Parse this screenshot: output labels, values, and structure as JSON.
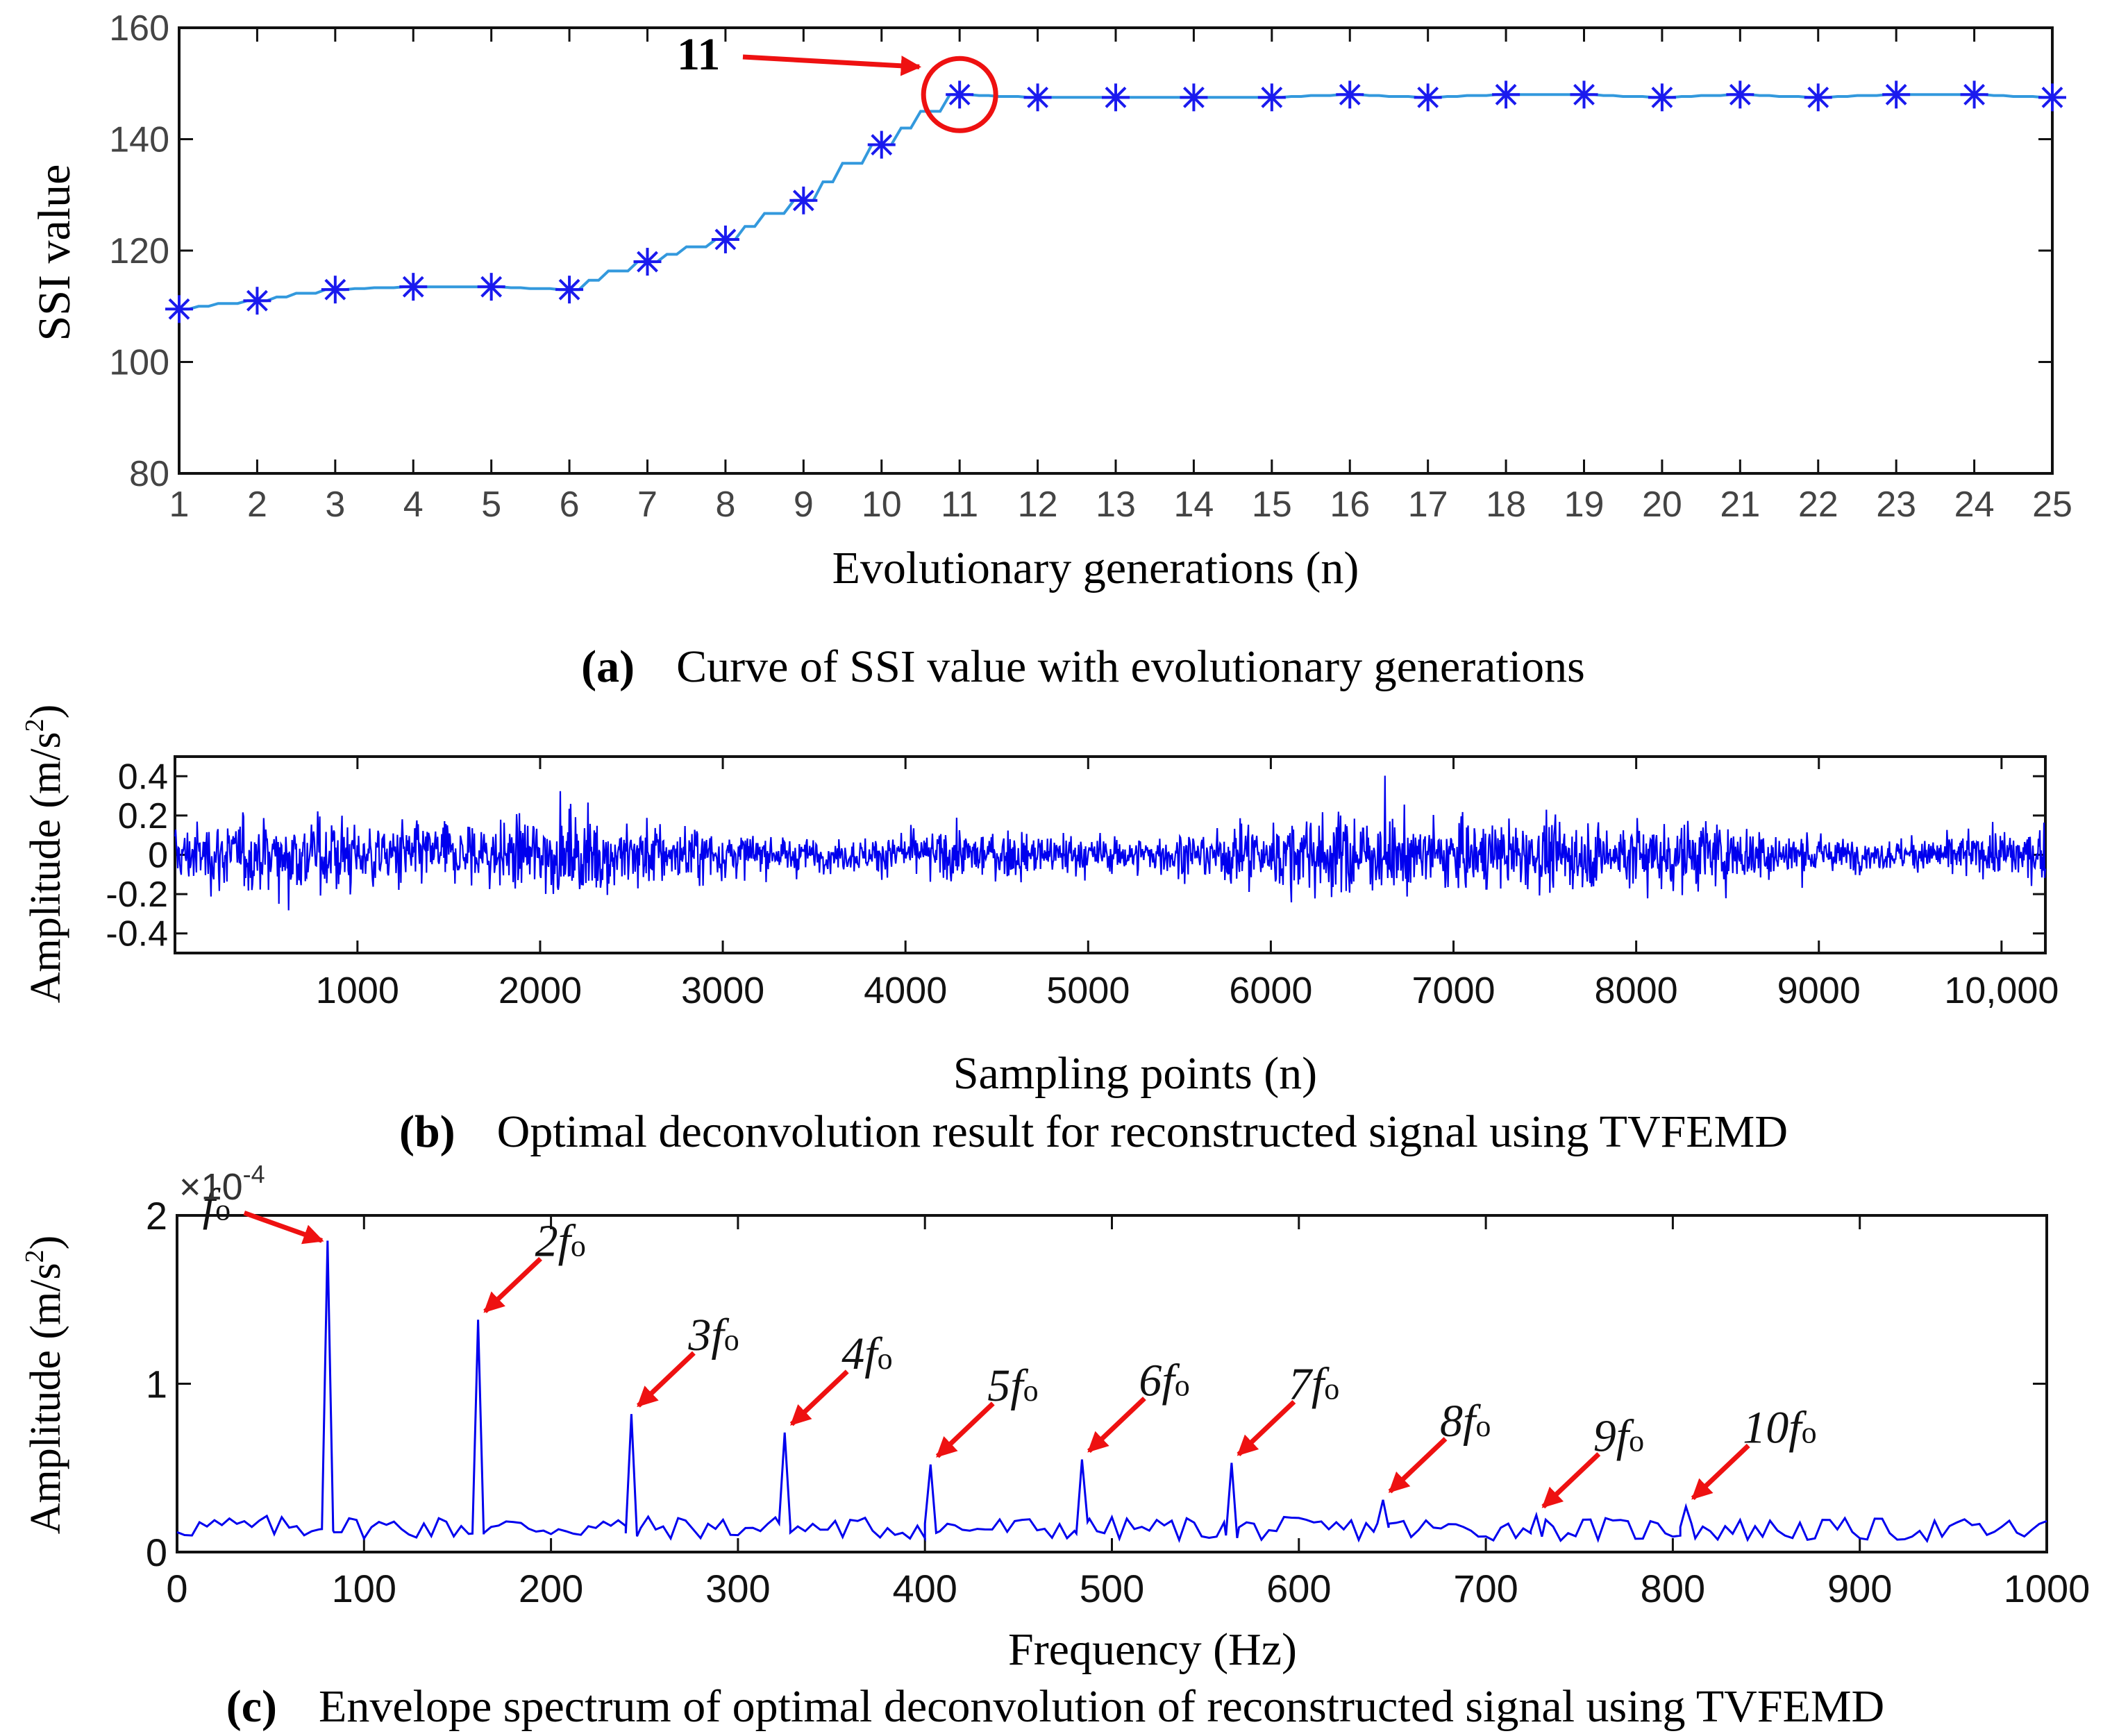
{
  "chart_data": [
    {
      "id": "a",
      "type": "line",
      "caption_label": "(a)",
      "caption_text": "Curve of SSI value with evolutionary generations",
      "xlabel": "Evolutionary generations (n)",
      "ylabel": "SSI value",
      "x": [
        1,
        2,
        3,
        4,
        5,
        6,
        7,
        8,
        9,
        10,
        11,
        12,
        13,
        14,
        15,
        16,
        17,
        18,
        19,
        20,
        21,
        22,
        23,
        24,
        25
      ],
      "y": [
        109.5,
        111,
        113,
        113.5,
        113.5,
        113,
        118,
        122,
        129,
        139,
        148,
        147.5,
        147.5,
        147.5,
        147.5,
        148,
        147.5,
        148,
        148,
        147.5,
        148,
        147.5,
        148,
        148,
        147.5
      ],
      "xlim": [
        1,
        25
      ],
      "ylim": [
        80,
        160
      ],
      "xticks": [
        "1",
        "2",
        "3",
        "4",
        "5",
        "6",
        "7",
        "8",
        "9",
        "10",
        "11",
        "12",
        "13",
        "14",
        "15",
        "16",
        "17",
        "18",
        "19",
        "20",
        "21",
        "22",
        "23",
        "24",
        "25"
      ],
      "yticks": [
        "80",
        "100",
        "120",
        "140",
        "160"
      ],
      "annotation": {
        "text": "11",
        "x": 11,
        "y": 148
      },
      "colors": {
        "line": "#3399dd",
        "marker": "#1a1aee",
        "annotation": "#ee1111"
      }
    },
    {
      "id": "b",
      "type": "line",
      "caption_label": "(b)",
      "caption_text": "Optimal deconvolution result for reconstructed signal using TVFEMD",
      "xlabel": "Sampling points (n)",
      "ylabel": "Amplitude (m/s",
      "ylabel_sup": "2",
      "ylabel_close": ")",
      "signal_points": 10240,
      "amplitude_range": [
        -0.45,
        0.45
      ],
      "xlim": [
        1,
        10240
      ],
      "ylim": [
        -0.5,
        0.5
      ],
      "xticks": [
        "1000",
        "2000",
        "3000",
        "4000",
        "5000",
        "6000",
        "7000",
        "8000",
        "9000",
        "10,000"
      ],
      "yticks": [
        "-0.4",
        "-0.2",
        "0",
        "0.2",
        "0.4"
      ],
      "colors": {
        "line": "#0000ee"
      }
    },
    {
      "id": "c",
      "type": "line",
      "caption_label": "(c)",
      "caption_text": "Envelope spectrum of optimal deconvolution of reconstructed signal using TVFEMD",
      "xlabel": "Frequency (Hz)",
      "ylabel": "Amplitude (m/s",
      "ylabel_sup": "2",
      "ylabel_close": ")",
      "scale_base": "×10",
      "scale_exp": "-4",
      "xlim": [
        0,
        1000
      ],
      "ylim": [
        0,
        2
      ],
      "xticks": [
        "0",
        "100",
        "200",
        "300",
        "400",
        "500",
        "600",
        "700",
        "800",
        "900",
        "1000"
      ],
      "yticks": [
        "0",
        "1",
        "2"
      ],
      "peaks": [
        {
          "coef": "",
          "f": 80.5,
          "amp": 1.85
        },
        {
          "coef": "2",
          "f": 161,
          "amp": 1.38
        },
        {
          "coef": "3",
          "f": 243,
          "amp": 0.82
        },
        {
          "coef": "4",
          "f": 325,
          "amp": 0.71
        },
        {
          "coef": "5",
          "f": 403,
          "amp": 0.52
        },
        {
          "coef": "6",
          "f": 484,
          "amp": 0.55
        },
        {
          "coef": "7",
          "f": 564,
          "amp": 0.53
        },
        {
          "coef": "8",
          "f": 645,
          "amp": 0.31
        },
        {
          "coef": "9",
          "f": 727,
          "amp": 0.22
        },
        {
          "coef": "10",
          "f": 807,
          "amp": 0.27
        }
      ],
      "peak_symbol": "f",
      "peak_sub": "o",
      "colors": {
        "line": "#0000ee",
        "annotation": "#ee1111"
      }
    }
  ]
}
